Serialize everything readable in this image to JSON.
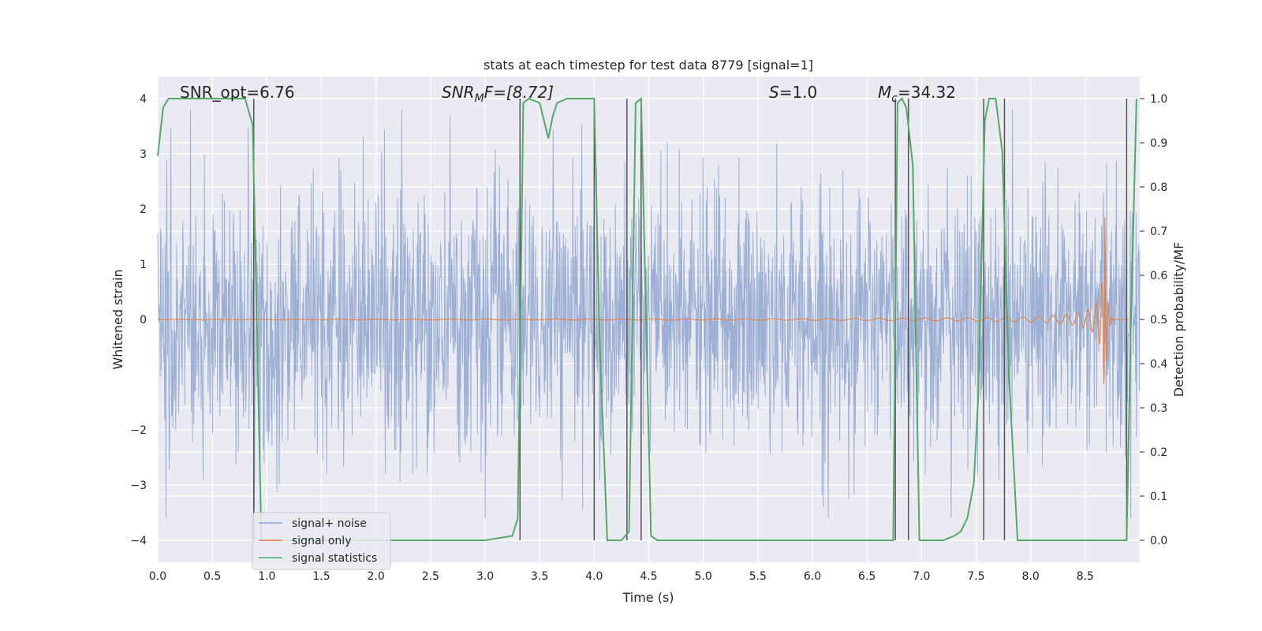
{
  "chart_data": {
    "type": "line",
    "title": "stats at each timestep for test data 8779 [signal=1]",
    "xlabel": "Time (s)",
    "ylabel_left": "Whitened strain",
    "ylabel_right": "Detection probability/MF",
    "xlim": [
      0.0,
      9.0
    ],
    "ylim_left": [
      -4.4,
      4.4
    ],
    "ylim_right": [
      -0.05,
      1.05
    ],
    "xticks": [
      "0.0",
      "0.5",
      "1.0",
      "1.5",
      "2.0",
      "2.5",
      "3.0",
      "3.5",
      "4.0",
      "4.5",
      "5.0",
      "5.5",
      "6.0",
      "6.5",
      "7.0",
      "7.5",
      "8.0",
      "8.5"
    ],
    "yticks_left": [
      "4",
      "3",
      "2",
      "1",
      "0",
      "−2",
      "−3",
      "−4"
    ],
    "yticks_right": [
      "1.0",
      "0.9",
      "0.8",
      "0.7",
      "0.6",
      "0.5",
      "0.4",
      "0.3",
      "0.2",
      "0.1",
      "0.0"
    ],
    "grid": true,
    "legend_position": "lower-left",
    "annotations": {
      "snr_opt": "SNR_opt=6.76",
      "snr_mf_prefix": "SNR",
      "snr_mf_sub": "M",
      "snr_mf_suffix": "F=[8.72]",
      "s_var": "S",
      "s_value": "=1.0",
      "mc_var": "M",
      "mc_sub": "c",
      "mc_value": "=34.32"
    },
    "series": [
      {
        "name": "signal+ noise",
        "color": "#8fa6cf",
        "description_range": [
          -3.6,
          3.8
        ]
      },
      {
        "name": "signal only",
        "color": "#dd8452",
        "chirp_peak_time": 8.68,
        "chirp_peak_amplitude": 1.9
      },
      {
        "name": "signal statistics",
        "color": "#55a868",
        "axis": "right",
        "x": [
          0.0,
          0.05,
          0.1,
          0.2,
          0.3,
          0.5,
          0.7,
          0.8,
          0.87,
          0.95,
          1.0,
          1.5,
          2.0,
          2.5,
          3.0,
          3.25,
          3.3,
          3.35,
          3.4,
          3.5,
          3.58,
          3.62,
          3.66,
          3.75,
          3.85,
          4.0,
          4.05,
          4.12,
          4.25,
          4.32,
          4.38,
          4.43,
          4.48,
          4.52,
          4.58,
          4.7,
          5.0,
          5.5,
          6.0,
          6.5,
          6.74,
          6.78,
          6.82,
          6.86,
          6.92,
          6.98,
          7.05,
          7.2,
          7.3,
          7.36,
          7.42,
          7.48,
          7.52,
          7.58,
          7.62,
          7.68,
          7.74,
          7.8,
          7.88,
          7.95,
          8.0,
          8.5,
          8.88,
          8.92,
          8.97
        ],
        "y": [
          0.87,
          0.98,
          1.0,
          1.0,
          1.0,
          1.0,
          1.0,
          1.0,
          0.94,
          0.0,
          0.0,
          0.0,
          0.0,
          0.0,
          0.0,
          0.01,
          0.05,
          0.99,
          1.0,
          0.99,
          0.91,
          0.96,
          0.99,
          1.0,
          1.0,
          1.0,
          0.45,
          0.0,
          0.0,
          0.02,
          0.99,
          1.0,
          0.45,
          0.01,
          0.0,
          0.0,
          0.0,
          0.0,
          0.0,
          0.0,
          0.0,
          0.99,
          1.0,
          0.98,
          0.85,
          0.0,
          0.0,
          0.0,
          0.01,
          0.02,
          0.05,
          0.13,
          0.33,
          0.95,
          1.0,
          1.0,
          0.88,
          0.38,
          0.0,
          0.0,
          0.0,
          0.0,
          0.0,
          0.5,
          1.0
        ]
      }
    ],
    "vertical_markers_x": [
      0.88,
      3.32,
      4.0,
      4.3,
      4.43,
      6.76,
      6.88,
      7.57,
      7.76,
      8.88
    ]
  }
}
